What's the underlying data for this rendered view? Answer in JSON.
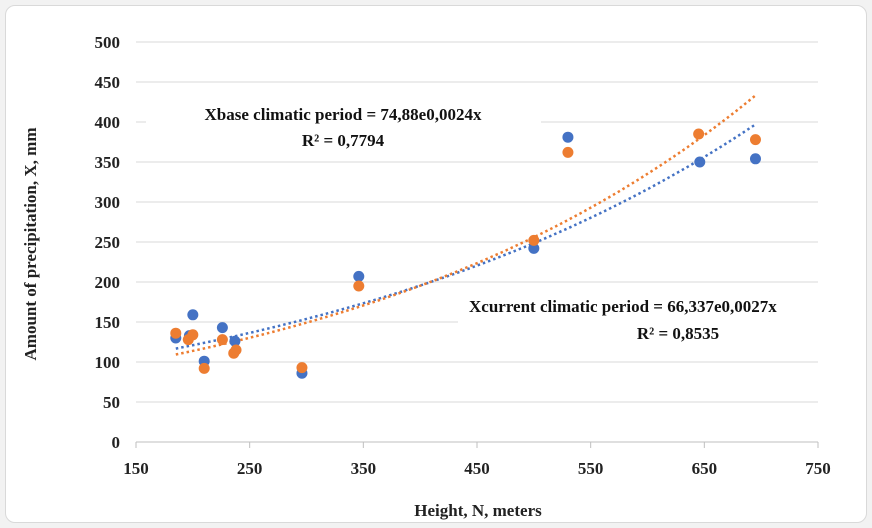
{
  "chart_data": {
    "type": "scatter",
    "xlabel": "Height, N, meters",
    "ylabel": "Amount of precipitation,  X, mm",
    "xlim": [
      150,
      750
    ],
    "ylim": [
      0,
      500
    ],
    "x_ticks": [
      "150",
      "250",
      "350",
      "450",
      "550",
      "650",
      "750"
    ],
    "y_ticks": [
      "0",
      "50",
      "100",
      "150",
      "200",
      "250",
      "300",
      "350",
      "400",
      "450",
      "500"
    ],
    "grid": true,
    "series": [
      {
        "color": "#4472c4",
        "x": [
          185,
          197,
          200,
          210,
          226,
          237,
          296,
          346,
          500,
          530,
          646,
          695
        ],
        "y": [
          130,
          133,
          159,
          101,
          143,
          126,
          86,
          207,
          242,
          381,
          350,
          354
        ],
        "trendline": {
          "a": 74.88,
          "b": 0.0024,
          "x_range": [
            185,
            695
          ]
        }
      },
      {
        "color": "#ed7d31",
        "x": [
          185,
          196,
          200,
          210,
          226,
          236,
          238,
          296,
          346,
          500,
          530,
          645,
          695
        ],
        "y": [
          136,
          128,
          134,
          92,
          128,
          111,
          115,
          93,
          195,
          252,
          362,
          385,
          378
        ],
        "trendline": {
          "a": 66.337,
          "b": 0.0027,
          "x_range": [
            185,
            695
          ]
        }
      }
    ],
    "annotations": [
      {
        "line1": "Xbase climatic  period  = 74,88e0,0024x",
        "line2": "R² = 0,7794"
      },
      {
        "line1": "Xcurrent  climatic  period  = 66,337e0,0027x",
        "line2": "R² = 0,8535"
      }
    ]
  }
}
